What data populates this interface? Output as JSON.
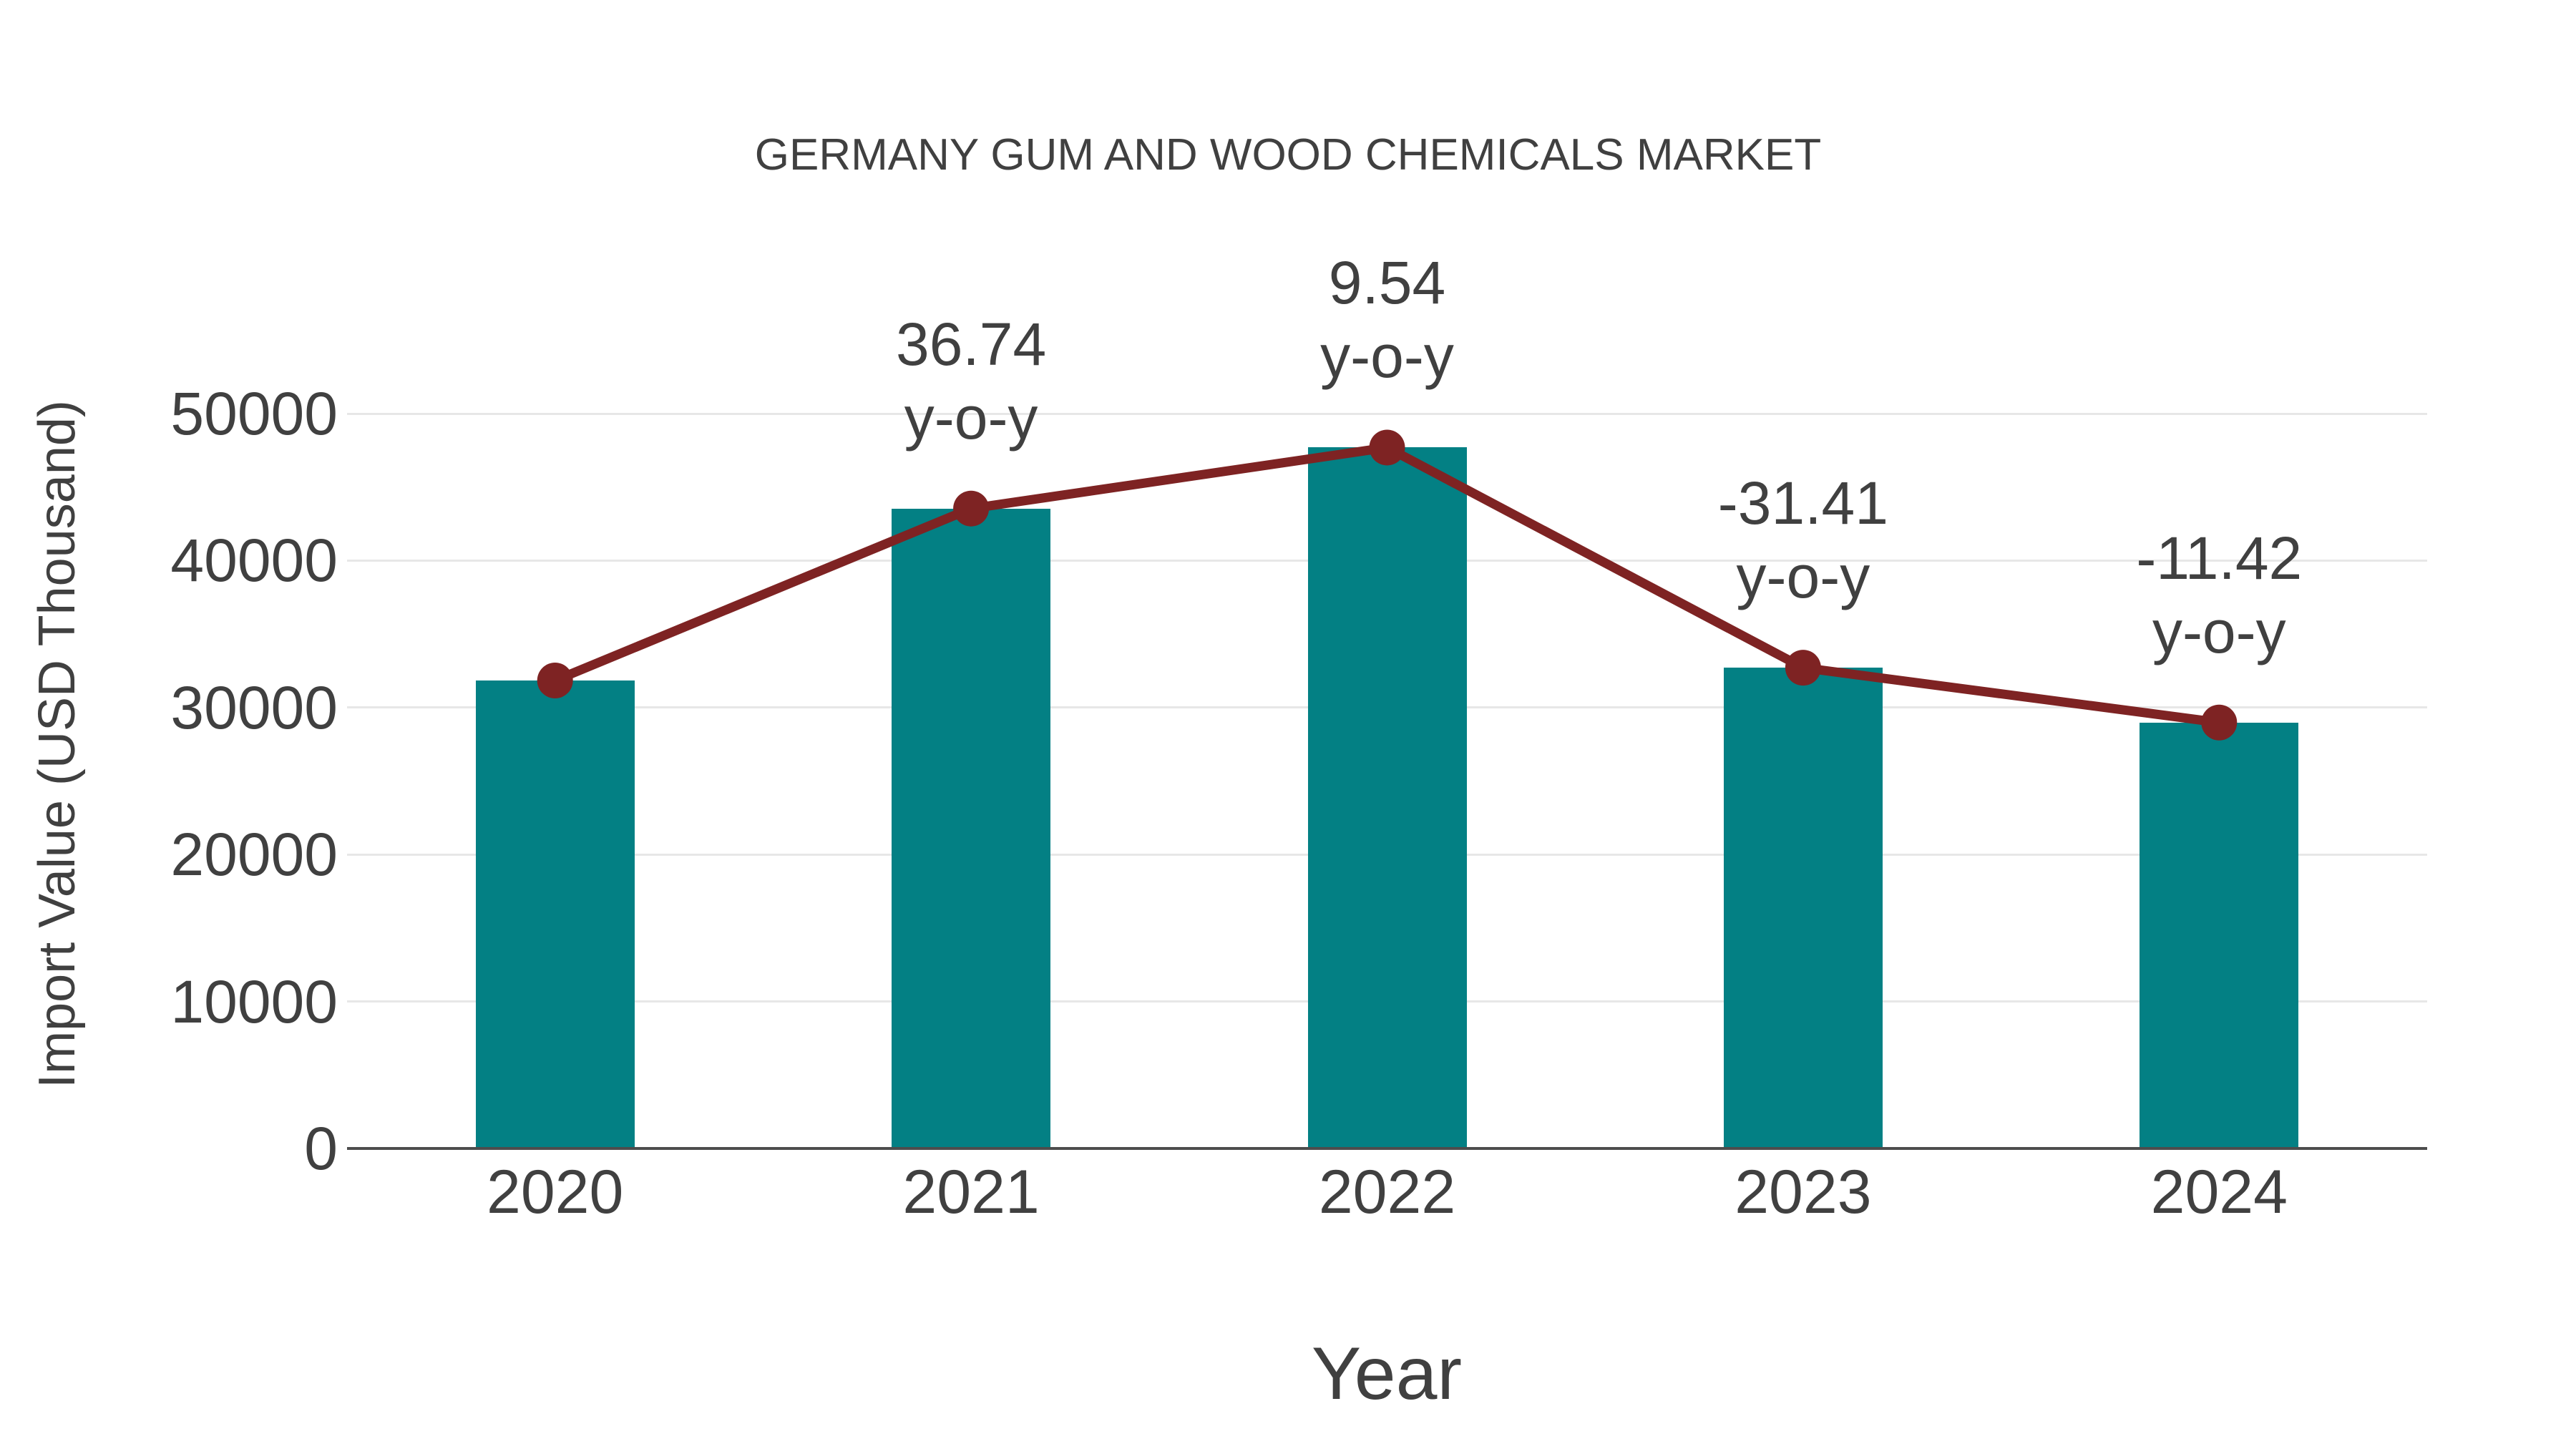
{
  "title": "GERMANY GUM AND WOOD CHEMICALS MARKET",
  "chart_data": {
    "type": "bar",
    "title": "GERMANY GUM AND WOOD CHEMICALS MARKET",
    "xlabel": "Year",
    "ylabel": "Import Value (USD Thousand)",
    "categories": [
      "2020",
      "2021",
      "2022",
      "2023",
      "2024"
    ],
    "series": [
      {
        "name": "Import Value (USD Thousand)",
        "type": "bar",
        "color": "#038084",
        "values": [
          31840,
          43540,
          47690,
          32710,
          28980
        ]
      },
      {
        "name": "y-o-y trend line",
        "type": "line",
        "color": "#7E2323",
        "values": [
          31840,
          43540,
          47690,
          32710,
          28980
        ]
      }
    ],
    "annotations": [
      {
        "category": "2021",
        "value_text": "36.74",
        "suffix": "y-o-y"
      },
      {
        "category": "2022",
        "value_text": "9.54",
        "suffix": "y-o-y"
      },
      {
        "category": "2023",
        "value_text": "-31.41",
        "suffix": "y-o-y"
      },
      {
        "category": "2024",
        "value_text": "-11.42",
        "suffix": "y-o-y"
      }
    ],
    "yoy_percent": {
      "2021": 36.74,
      "2022": 9.54,
      "2023": -31.41,
      "2024": -11.42
    },
    "yticks": [
      0,
      10000,
      20000,
      30000,
      40000,
      50000
    ],
    "ylim": [
      0,
      50000
    ],
    "grid": true,
    "legend_position": "none"
  },
  "colors": {
    "bar": "#038084",
    "line": "#7E2323",
    "marker": "#7E2323",
    "gridline": "#E7E7E7",
    "axis_line": "#4D4D4D",
    "text": "#404040",
    "background": "#FFFFFF"
  }
}
